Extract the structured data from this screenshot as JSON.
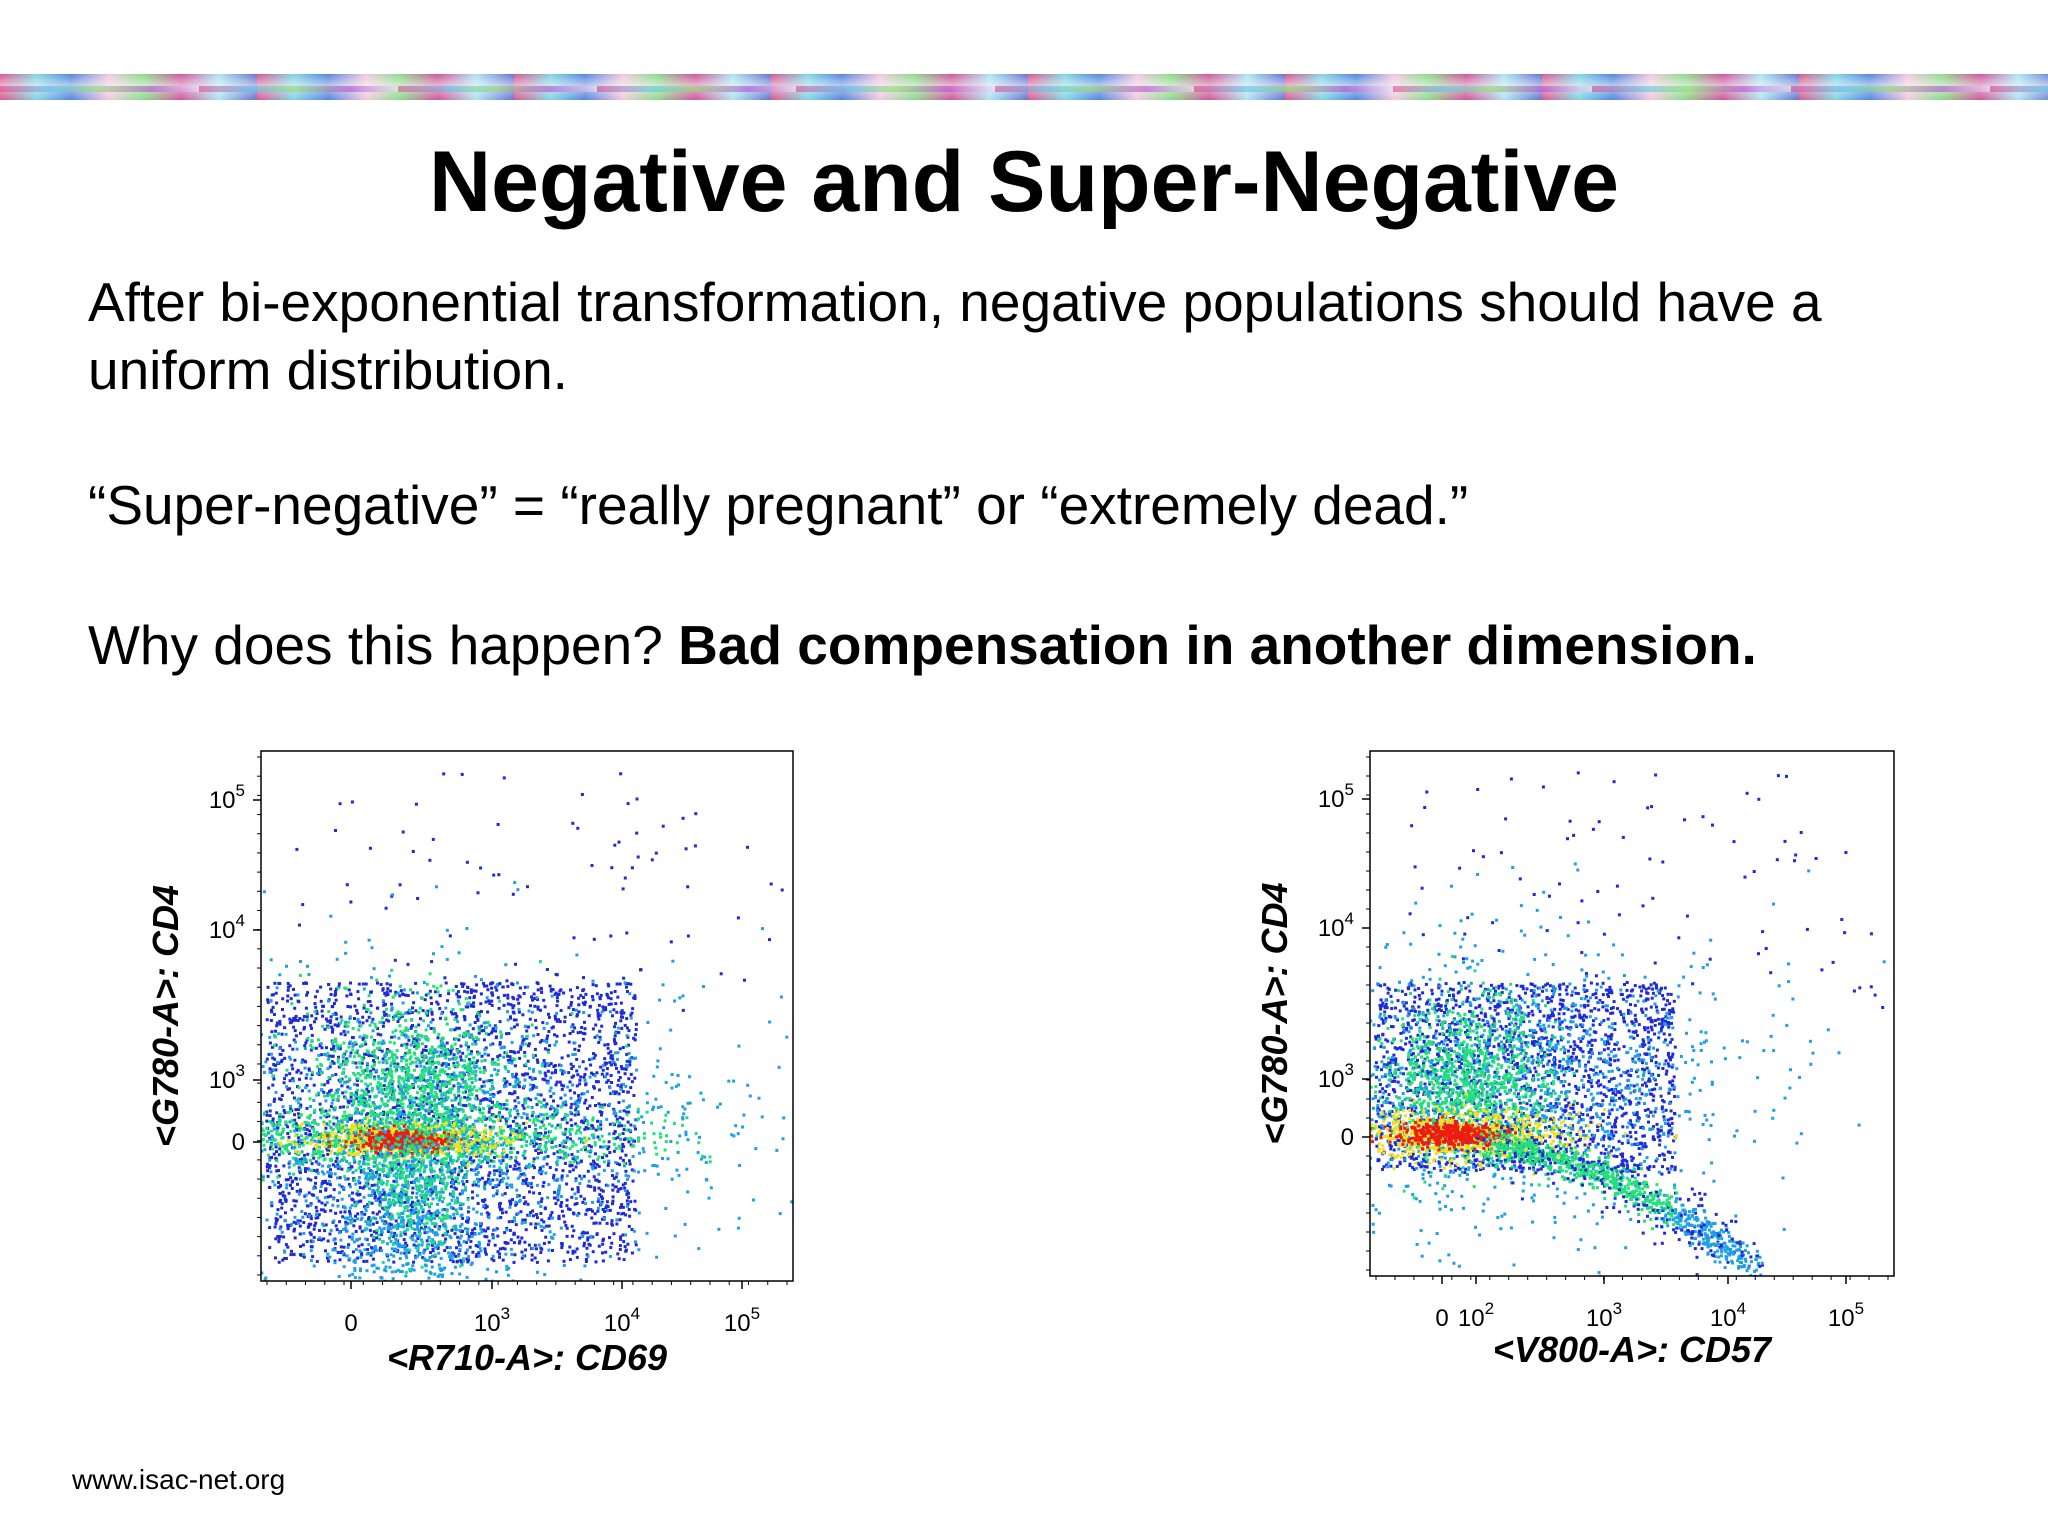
{
  "slide": {
    "title": "Negative and Super-Negative",
    "para1": "After bi-exponential transformation, negative populations should have a uniform distribution.",
    "para2": "“Super-negative” = “really pregnant” or “extremely dead.”",
    "para3_normal": "Why does this happen?  ",
    "para3_bold": "Bad compensation in another dimension.",
    "footer": "www.isac-net.org"
  },
  "chart_data": [
    {
      "type": "scatter",
      "subtype": "density-dot-plot",
      "title": "",
      "xlabel": "<R710-A>: CD69",
      "ylabel": "<G780-A>: CD4",
      "x_scale": "biexponential",
      "y_scale": "biexponential",
      "x_ticks": [
        {
          "value": 0,
          "base": "0",
          "exp": ""
        },
        {
          "value": 1000,
          "base": "10",
          "exp": "3"
        },
        {
          "value": 10000,
          "base": "10",
          "exp": "4"
        },
        {
          "value": 100000,
          "base": "10",
          "exp": "5"
        }
      ],
      "y_ticks": [
        {
          "value": 0,
          "base": "0",
          "exp": ""
        },
        {
          "value": 1000,
          "base": "10",
          "exp": "3"
        },
        {
          "value": 10000,
          "base": "10",
          "exp": "4"
        },
        {
          "value": 100000,
          "base": "10",
          "exp": "5"
        }
      ],
      "density_colors": [
        "#1e2ad8",
        "#1ea0e8",
        "#22e07a",
        "#f0e020",
        "#ee1c10"
      ],
      "populations": [
        {
          "name": "",
          "x_center": 0,
          "y_center": 1000,
          "density": "medium"
        },
        {
          "name": "",
          "x_center": 0,
          "y_center": 0,
          "density": "high"
        },
        {
          "name": "",
          "x_center": 0,
          "y_center": -300,
          "density": "low"
        }
      ]
    },
    {
      "type": "scatter",
      "subtype": "density-dot-plot",
      "title": "",
      "xlabel": "<V800-A>: CD57",
      "ylabel": "<G780-A>: CD4",
      "x_scale": "biexponential",
      "y_scale": "biexponential",
      "x_ticks": [
        {
          "value": 0,
          "base": "0",
          "exp": ""
        },
        {
          "value": 100,
          "base": "10",
          "exp": "2"
        },
        {
          "value": 1000,
          "base": "10",
          "exp": "3"
        },
        {
          "value": 10000,
          "base": "10",
          "exp": "4"
        },
        {
          "value": 100000,
          "base": "10",
          "exp": "5"
        }
      ],
      "y_ticks": [
        {
          "value": 0,
          "base": "0",
          "exp": ""
        },
        {
          "value": 1000,
          "base": "10",
          "exp": "3"
        },
        {
          "value": 10000,
          "base": "10",
          "exp": "4"
        },
        {
          "value": 100000,
          "base": "10",
          "exp": "5"
        }
      ],
      "density_colors": [
        "#1e2ad8",
        "#1ea0e8",
        "#22e07a",
        "#f0e020",
        "#ee1c10"
      ],
      "populations": [
        {
          "name": "",
          "x_center": 0,
          "y_center": 1000,
          "density": "medium"
        },
        {
          "name": "",
          "x_center": 0,
          "y_center": 0,
          "density": "high"
        },
        {
          "name": "",
          "x_center": 10000,
          "y_center": -800,
          "density": "medium"
        }
      ]
    }
  ]
}
